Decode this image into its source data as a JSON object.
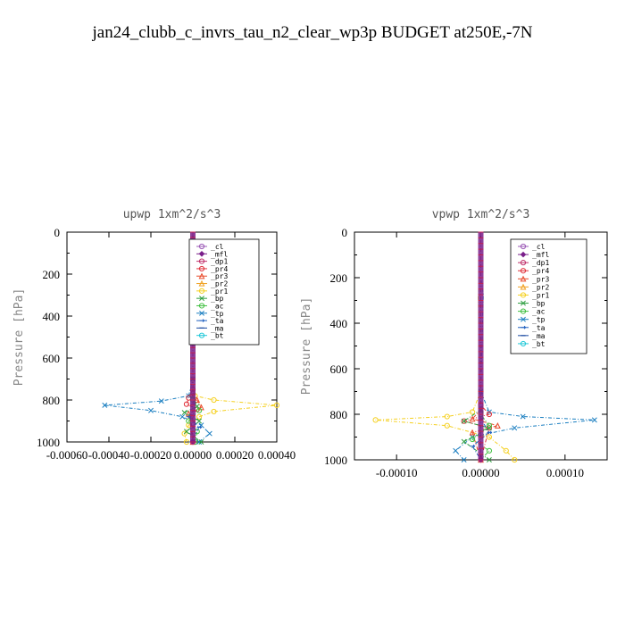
{
  "title": "jan24_clubb_c_invrs_tau_n2_clear_wp3p  BUDGET at250E,-7N",
  "series_styles": [
    {
      "name": "_cl",
      "color": "#9b59b6",
      "marker": "circle"
    },
    {
      "name": "_mfl",
      "color": "#7a1f8a",
      "marker": "diamond"
    },
    {
      "name": "_dp1",
      "color": "#c0306a",
      "marker": "circle"
    },
    {
      "name": "_pr4",
      "color": "#e0303a",
      "marker": "circle"
    },
    {
      "name": "_pr3",
      "color": "#e84a2a",
      "marker": "triangle"
    },
    {
      "name": "_pr2",
      "color": "#f0a020",
      "marker": "triangle"
    },
    {
      "name": "_pr1",
      "color": "#f5d020",
      "marker": "circle"
    },
    {
      "name": "_bp",
      "color": "#2e9e40",
      "marker": "x"
    },
    {
      "name": "_ac",
      "color": "#40c040",
      "marker": "circle"
    },
    {
      "name": "_tp",
      "color": "#1a7ec0",
      "marker": "x"
    },
    {
      "name": "_ta",
      "color": "#2060c0",
      "marker": "arrow"
    },
    {
      "name": "_ma",
      "color": "#1a4aa0",
      "marker": "dash"
    },
    {
      "name": "_bt",
      "color": "#20c8d8",
      "marker": "circle"
    }
  ],
  "chart_data": [
    {
      "type": "line",
      "title": "upwp   1xm^2/s^3",
      "ylabel": "Pressure [hPa]",
      "xlim": [
        -0.0006,
        0.0004
      ],
      "ylim": [
        1000,
        0
      ],
      "xticks": [
        -0.0006,
        -0.0004,
        -0.0002,
        0.0,
        0.0002,
        0.0004
      ],
      "xtick_labels": [
        "-0.00060",
        "-0.00040",
        "-0.00020",
        "0.00000",
        "0.00020",
        "0.00040"
      ],
      "yticks": [
        0,
        200,
        400,
        600,
        800,
        1000
      ],
      "ytick_labels": [
        "0",
        "200",
        "400",
        "600",
        "800",
        "1000"
      ],
      "legend": "top-right",
      "series": [
        {
          "name": "_pr1",
          "points": [
            [
              0,
              0
            ],
            [
              0,
              700
            ],
            [
              1e-05,
              780
            ],
            [
              0.0001,
              800
            ],
            [
              0.0004,
              825
            ],
            [
              0.0001,
              855
            ],
            [
              3e-05,
              880
            ],
            [
              -2e-05,
              920
            ],
            [
              -4e-05,
              960
            ],
            [
              -3e-05,
              1000
            ]
          ]
        },
        {
          "name": "_tp",
          "points": [
            [
              0,
              0
            ],
            [
              0,
              700
            ],
            [
              -2e-05,
              780
            ],
            [
              -0.00015,
              805
            ],
            [
              -0.00042,
              825
            ],
            [
              -0.0002,
              850
            ],
            [
              -5e-05,
              880
            ],
            [
              4e-05,
              920
            ],
            [
              8e-05,
              960
            ],
            [
              3e-05,
              1000
            ]
          ]
        },
        {
          "name": "_pr4",
          "points": [
            [
              0,
              0
            ],
            [
              0,
              750
            ],
            [
              -2e-05,
              790
            ],
            [
              -3e-05,
              820
            ],
            [
              2e-05,
              845
            ],
            [
              -1e-05,
              880
            ],
            [
              0,
              1000
            ]
          ]
        },
        {
          "name": "_pr3",
          "points": [
            [
              0,
              0
            ],
            [
              0,
              760
            ],
            [
              2e-05,
              800
            ],
            [
              4e-05,
              835
            ],
            [
              -2e-05,
              865
            ],
            [
              0,
              1000
            ]
          ]
        },
        {
          "name": "_bp",
          "points": [
            [
              0,
              0
            ],
            [
              0,
              780
            ],
            [
              2e-05,
              830
            ],
            [
              -4e-05,
              860
            ],
            [
              3e-05,
              900
            ],
            [
              -3e-05,
              950
            ],
            [
              4e-05,
              1000
            ]
          ]
        },
        {
          "name": "_ac",
          "points": [
            [
              0,
              0
            ],
            [
              0,
              800
            ],
            [
              3e-05,
              850
            ],
            [
              -2e-05,
              900
            ],
            [
              2e-05,
              950
            ],
            [
              1e-05,
              1000
            ]
          ]
        },
        {
          "name": "_ta",
          "points": [
            [
              0,
              0
            ],
            [
              0,
              820
            ],
            [
              -2e-05,
              880
            ],
            [
              3e-05,
              930
            ],
            [
              -1e-05,
              1000
            ]
          ]
        },
        {
          "name": "_cl",
          "points": [
            [
              0,
              0
            ],
            [
              0,
              1000
            ]
          ]
        },
        {
          "name": "_mfl",
          "points": [
            [
              0,
              0
            ],
            [
              0,
              1000
            ]
          ]
        },
        {
          "name": "_dp1",
          "points": [
            [
              0,
              0
            ],
            [
              0,
              1000
            ]
          ]
        }
      ]
    },
    {
      "type": "line",
      "title": "vpwp   1xm^2/s^3",
      "ylabel": "Pressure [hPa]",
      "xlim": [
        -0.00015,
        0.00015
      ],
      "ylim": [
        1000,
        0
      ],
      "xticks": [
        -0.0001,
        0.0,
        0.0001
      ],
      "xtick_labels": [
        "-0.00010",
        "0.00000",
        "0.00010"
      ],
      "yticks": [
        0,
        200,
        400,
        600,
        800,
        1000
      ],
      "ytick_labels": [
        "0",
        "200",
        "400",
        "600",
        "800",
        "1000"
      ],
      "legend": "top-right",
      "series": [
        {
          "name": "_pr1",
          "points": [
            [
              0,
              0
            ],
            [
              0,
              200
            ],
            [
              -3e-06,
              280
            ],
            [
              0,
              700
            ],
            [
              -1e-05,
              790
            ],
            [
              -4e-05,
              810
            ],
            [
              -0.000125,
              825
            ],
            [
              -4e-05,
              850
            ],
            [
              1e-05,
              900
            ],
            [
              3e-05,
              960
            ],
            [
              4e-05,
              1000
            ]
          ]
        },
        {
          "name": "_tp",
          "points": [
            [
              0,
              0
            ],
            [
              0,
              200
            ],
            [
              3e-06,
              270
            ],
            [
              0,
              700
            ],
            [
              1e-05,
              790
            ],
            [
              5e-05,
              810
            ],
            [
              0.000135,
              825
            ],
            [
              4e-05,
              860
            ],
            [
              -1e-05,
              900
            ],
            [
              -3e-05,
              960
            ],
            [
              -2e-05,
              1000
            ]
          ]
        },
        {
          "name": "_pr4",
          "points": [
            [
              0,
              0
            ],
            [
              0,
              760
            ],
            [
              1e-05,
              800
            ],
            [
              -2e-05,
              830
            ],
            [
              1e-05,
              860
            ],
            [
              0,
              1000
            ]
          ]
        },
        {
          "name": "_pr3",
          "points": [
            [
              0,
              0
            ],
            [
              0,
              780
            ],
            [
              -1e-05,
              820
            ],
            [
              2e-05,
              850
            ],
            [
              -1e-05,
              880
            ],
            [
              0,
              1000
            ]
          ]
        },
        {
          "name": "_bp",
          "points": [
            [
              0,
              0
            ],
            [
              0,
              780
            ],
            [
              -2e-05,
              830
            ],
            [
              1e-05,
              860
            ],
            [
              -2e-05,
              920
            ],
            [
              1e-05,
              1000
            ]
          ]
        },
        {
          "name": "_ac",
          "points": [
            [
              0,
              0
            ],
            [
              0,
              800
            ],
            [
              1e-05,
              850
            ],
            [
              -1e-05,
              910
            ],
            [
              1e-05,
              960
            ],
            [
              0,
              1000
            ]
          ]
        },
        {
          "name": "_ta",
          "points": [
            [
              0,
              0
            ],
            [
              0,
              820
            ],
            [
              1e-05,
              880
            ],
            [
              -1e-05,
              940
            ],
            [
              0,
              1000
            ]
          ]
        },
        {
          "name": "_cl",
          "points": [
            [
              0,
              0
            ],
            [
              0,
              1000
            ]
          ]
        },
        {
          "name": "_mfl",
          "points": [
            [
              0,
              0
            ],
            [
              0,
              1000
            ]
          ]
        },
        {
          "name": "_dp1",
          "points": [
            [
              0,
              0
            ],
            [
              0,
              1000
            ]
          ]
        }
      ]
    }
  ]
}
